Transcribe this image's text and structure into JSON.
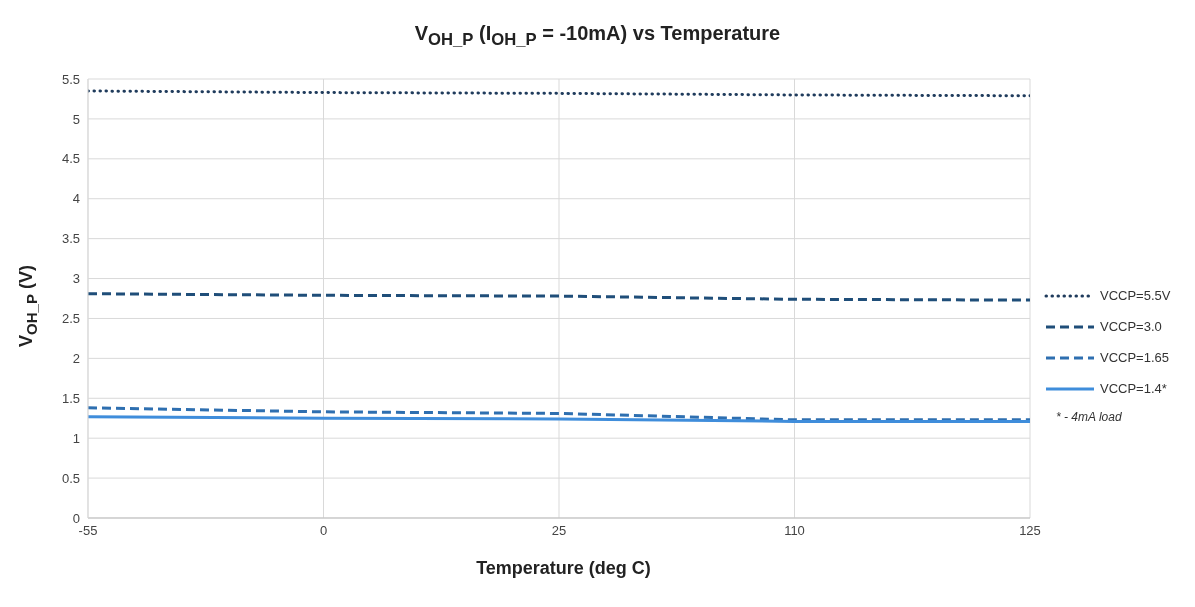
{
  "chart_data": {
    "type": "line",
    "title": "V$_{OH_P}$ (I$_{OH_P}$ = -10mA) vs Temperature",
    "xlabel": "Temperature (deg C)",
    "ylabel": "V$_{OH_P}$ (V)",
    "categories": [
      "-55",
      "0",
      "25",
      "110",
      "125"
    ],
    "series": [
      {
        "name": "VCCP=5.5V",
        "color": "#1f3b5c",
        "line_style": "dotted",
        "values": [
          5.35,
          5.33,
          5.32,
          5.3,
          5.29
        ]
      },
      {
        "name": "VCCP=3.0",
        "color": "#1f4e79",
        "line_style": "dashed",
        "values": [
          2.81,
          2.79,
          2.78,
          2.74,
          2.73
        ]
      },
      {
        "name": "VCCP=1.65",
        "color": "#2e6fb0",
        "line_style": "dashed",
        "values": [
          1.38,
          1.33,
          1.31,
          1.23,
          1.23
        ]
      },
      {
        "name": "VCCP=1.4*",
        "color": "#3f8ddb",
        "line_style": "solid",
        "values": [
          1.27,
          1.25,
          1.24,
          1.21,
          1.21
        ]
      }
    ],
    "ylim": [
      0,
      5.5
    ],
    "yticks": [
      0,
      0.5,
      1,
      1.5,
      2,
      2.5,
      3,
      3.5,
      4,
      4.5,
      5,
      5.5
    ],
    "grid": true,
    "legend": "right",
    "marker": "none",
    "annotations": [
      "* - 4mA load"
    ]
  }
}
